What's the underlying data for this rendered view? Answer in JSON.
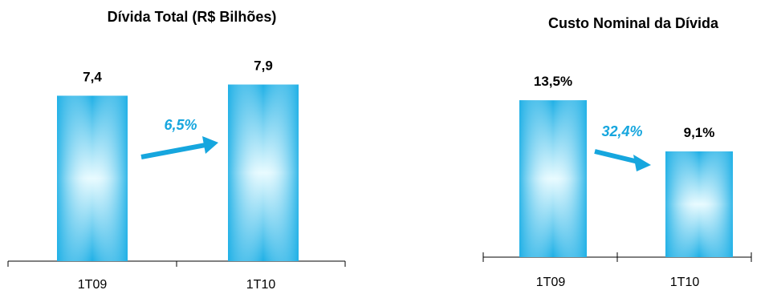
{
  "colors": {
    "bar_edge": "#1fb0e6",
    "bar_center": "#e8fbff",
    "arrow": "#16a6de",
    "growth_text": "#16a6de",
    "axis": "#000000"
  },
  "chart_data": [
    {
      "type": "bar",
      "title": "Dívida Total (R$ Bilhões)",
      "categories": [
        "1T09",
        "1T10"
      ],
      "values": [
        7.4,
        7.9
      ],
      "value_labels": [
        "7,4",
        "7,9"
      ],
      "ylim": [
        0,
        8.6
      ],
      "grid": false,
      "annotation": {
        "text": "6,5%",
        "direction": "up"
      }
    },
    {
      "type": "bar",
      "title": "Custo Nominal da Dívida",
      "categories": [
        "1T09",
        "1T10"
      ],
      "values": [
        13.5,
        9.1
      ],
      "value_labels": [
        "13,5%",
        "9,1%"
      ],
      "ylim": [
        0,
        20.2
      ],
      "grid": false,
      "annotation": {
        "text": "32,4%",
        "direction": "down"
      }
    }
  ]
}
